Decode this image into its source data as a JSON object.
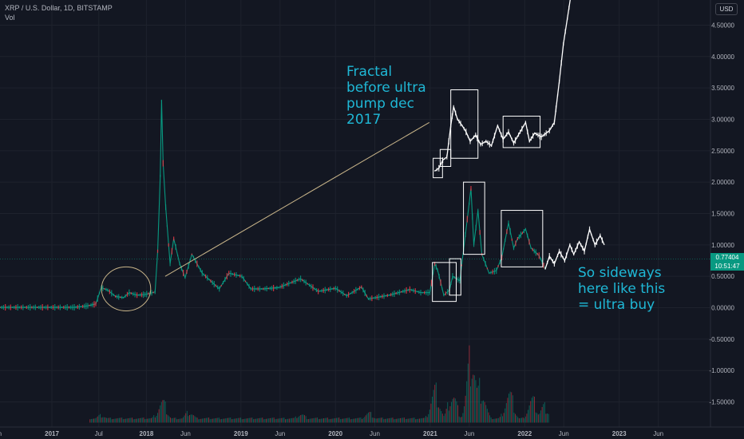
{
  "header": {
    "symbol_line": "XRP / U.S. Dollar, 1D, BITSTAMP",
    "volume_label": "Vol",
    "currency": "USD"
  },
  "price_tag": {
    "price": "0.77404",
    "countdown": "10:51:47"
  },
  "annotations": {
    "fractal": [
      "Fractal",
      "before ultra",
      "pump dec",
      "2017"
    ],
    "sideways": [
      "So sideways",
      "here like this",
      "= ultra buy"
    ]
  },
  "chart_data": {
    "type": "line",
    "x_tick_labels": [
      "Jun",
      "2017",
      "Jul",
      "2018",
      "Jun",
      "2019",
      "Jun",
      "2020",
      "Jun",
      "2021",
      "Jun",
      "2022",
      "Jun",
      "2023",
      "Jun"
    ],
    "y_tick_labels": [
      "4.50000",
      "4.00000",
      "3.50000",
      "3.00000",
      "2.50000",
      "2.00000",
      "1.50000",
      "1.00000",
      "0.50000",
      "0.00000",
      "-0.50000",
      "-1.00000",
      "-1.50000"
    ],
    "y_ticks": [
      4.5,
      4.0,
      3.5,
      3.0,
      2.5,
      2.0,
      1.5,
      1.0,
      0.5,
      0.0,
      -0.5,
      -1.0,
      -1.5
    ],
    "ylim": [
      -1.9,
      4.9
    ],
    "xlim": [
      "2016-04-20",
      "2023-10-25"
    ],
    "current_price": 0.77404,
    "series": [
      {
        "color": "#089981",
        "points": [
          [
            "2016-04-20",
            0.006
          ],
          [
            "2017-02-01",
            0.006
          ],
          [
            "2017-03-25",
            0.03
          ],
          [
            "2017-04-25",
            0.06
          ],
          [
            "2017-05-16",
            0.32
          ],
          [
            "2017-06-10",
            0.28
          ],
          [
            "2017-07-10",
            0.18
          ],
          [
            "2017-08-10",
            0.16
          ],
          [
            "2017-09-01",
            0.24
          ],
          [
            "2017-10-01",
            0.2
          ],
          [
            "2017-11-01",
            0.21
          ],
          [
            "2017-12-10",
            0.25
          ],
          [
            "2017-12-20",
            0.9
          ],
          [
            "2017-12-30",
            2.1
          ],
          [
            "2018-01-04",
            3.3
          ],
          [
            "2018-01-10",
            2.3
          ],
          [
            "2018-01-20",
            1.6
          ],
          [
            "2018-02-06",
            0.7
          ],
          [
            "2018-02-20",
            1.1
          ],
          [
            "2018-03-15",
            0.7
          ],
          [
            "2018-04-05",
            0.48
          ],
          [
            "2018-05-01",
            0.85
          ],
          [
            "2018-06-10",
            0.55
          ],
          [
            "2018-08-15",
            0.3
          ],
          [
            "2018-09-21",
            0.55
          ],
          [
            "2018-11-10",
            0.5
          ],
          [
            "2018-12-15",
            0.3
          ],
          [
            "2019-02-01",
            0.3
          ],
          [
            "2019-04-01",
            0.32
          ],
          [
            "2019-06-25",
            0.46
          ],
          [
            "2019-09-01",
            0.26
          ],
          [
            "2019-11-07",
            0.31
          ],
          [
            "2019-12-20",
            0.19
          ],
          [
            "2020-02-15",
            0.33
          ],
          [
            "2020-03-13",
            0.14
          ],
          [
            "2020-06-01",
            0.2
          ],
          [
            "2020-08-20",
            0.29
          ],
          [
            "2020-10-01",
            0.24
          ],
          [
            "2020-11-05",
            0.24
          ],
          [
            "2020-11-24",
            0.7
          ],
          [
            "2020-12-05",
            0.6
          ],
          [
            "2020-12-29",
            0.2
          ],
          [
            "2021-01-20",
            0.28
          ],
          [
            "2021-02-01",
            0.5
          ],
          [
            "2021-03-01",
            0.43
          ],
          [
            "2021-04-13",
            1.9
          ],
          [
            "2021-04-24",
            1.0
          ],
          [
            "2021-05-10",
            1.55
          ],
          [
            "2021-05-25",
            0.85
          ],
          [
            "2021-06-22",
            0.55
          ],
          [
            "2021-07-20",
            0.59
          ],
          [
            "2021-08-10",
            0.8
          ],
          [
            "2021-09-05",
            1.35
          ],
          [
            "2021-09-25",
            0.95
          ],
          [
            "2021-10-10",
            1.1
          ],
          [
            "2021-11-10",
            1.25
          ],
          [
            "2021-12-01",
            0.95
          ],
          [
            "2022-01-01",
            0.83
          ],
          [
            "2022-01-25",
            0.62
          ]
        ]
      },
      {
        "color": "#ffffff",
        "points": [
          [
            "2022-01-25",
            0.62
          ],
          [
            "2022-02-10",
            0.82
          ],
          [
            "2022-03-01",
            0.7
          ],
          [
            "2022-03-20",
            0.9
          ],
          [
            "2022-04-10",
            0.75
          ],
          [
            "2022-04-30",
            1.0
          ],
          [
            "2022-05-15",
            0.85
          ],
          [
            "2022-06-05",
            1.05
          ],
          [
            "2022-06-25",
            0.9
          ],
          [
            "2022-07-15",
            1.25
          ],
          [
            "2022-08-05",
            1.0
          ],
          [
            "2022-08-25",
            1.15
          ],
          [
            "2022-09-10",
            1.0
          ]
        ]
      },
      {
        "color": "#ffffff",
        "points": [
          [
            "2020-11-25",
            2.18
          ],
          [
            "2020-12-10",
            2.22
          ],
          [
            "2020-12-25",
            2.35
          ],
          [
            "2021-01-10",
            2.4
          ],
          [
            "2021-01-25",
            2.9
          ],
          [
            "2021-02-05",
            3.2
          ],
          [
            "2021-02-20",
            3.0
          ],
          [
            "2021-03-10",
            2.9
          ],
          [
            "2021-03-25",
            2.8
          ],
          [
            "2021-04-10",
            2.65
          ],
          [
            "2021-05-01",
            2.75
          ],
          [
            "2021-05-20",
            2.6
          ],
          [
            "2021-06-10",
            2.65
          ],
          [
            "2021-07-01",
            2.58
          ],
          [
            "2021-07-25",
            2.9
          ],
          [
            "2021-08-15",
            2.68
          ],
          [
            "2021-09-05",
            2.8
          ],
          [
            "2021-09-25",
            2.62
          ],
          [
            "2021-10-20",
            2.8
          ],
          [
            "2021-11-10",
            2.95
          ],
          [
            "2021-11-25",
            2.65
          ],
          [
            "2021-12-15",
            2.78
          ],
          [
            "2022-01-10",
            2.72
          ],
          [
            "2022-02-10",
            2.82
          ],
          [
            "2022-03-01",
            2.95
          ],
          [
            "2022-03-20",
            3.6
          ],
          [
            "2022-04-05",
            4.2
          ],
          [
            "2022-04-20",
            4.6
          ],
          [
            "2022-05-03",
            4.95
          ]
        ]
      }
    ],
    "volume": {
      "peaks": [
        [
          "2017-05-15",
          0.12
        ],
        [
          "2017-12-25",
          0.22
        ],
        [
          "2018-01-05",
          0.45
        ],
        [
          "2018-04-20",
          0.2
        ],
        [
          "2019-06-25",
          0.15
        ],
        [
          "2020-03-13",
          0.18
        ],
        [
          "2020-11-24",
          0.75
        ],
        [
          "2021-01-30",
          0.62
        ],
        [
          "2021-04-14",
          1.6
        ],
        [
          "2021-05-19",
          0.85
        ],
        [
          "2021-09-06",
          0.65
        ],
        [
          "2021-12-04",
          0.5
        ],
        [
          "2022-01-20",
          0.35
        ]
      ],
      "bottom_value": -1.83
    },
    "boxes": [
      {
        "x0": "2020-11-18",
        "x1": "2020-12-24",
        "y0": 2.07,
        "y1": 2.38
      },
      {
        "x0": "2020-12-15",
        "x1": "2021-01-25",
        "y0": 2.25,
        "y1": 2.52
      },
      {
        "x0": "2021-01-25",
        "x1": "2021-05-10",
        "y0": 2.38,
        "y1": 3.47
      },
      {
        "x0": "2021-08-15",
        "x1": "2022-01-05",
        "y0": 2.55,
        "y1": 3.05
      },
      {
        "x0": "2020-11-15",
        "x1": "2021-02-15",
        "y0": 0.72,
        "y1": 0.1
      },
      {
        "x0": "2021-01-20",
        "x1": "2021-03-05",
        "y0": 0.78,
        "y1": 0.2
      },
      {
        "x0": "2021-03-15",
        "x1": "2021-06-05",
        "y0": 2.0,
        "y1": 0.85
      },
      {
        "x0": "2021-08-08",
        "x1": "2022-01-15",
        "y0": 1.55,
        "y1": 0.65
      }
    ],
    "ellipse": {
      "cx": "2017-08-20",
      "cy": 0.3,
      "rx_days": 95,
      "ry": 0.35,
      "color": "#c9b58a"
    },
    "arrow": {
      "from": [
        "2020-11-03",
        2.95
      ],
      "to": [
        "2018-01-18",
        0.5
      ],
      "color": "#c9b58a"
    }
  }
}
